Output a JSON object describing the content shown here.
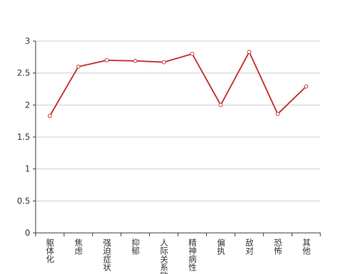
{
  "chart_data": {
    "type": "line",
    "categories": [
      "躯体化",
      "焦虑",
      "强迫症状",
      "抑郁",
      "人际关系敏感",
      "精神病性",
      "偏执",
      "敌对",
      "恐怖",
      "其他"
    ],
    "values": [
      1.83,
      2.6,
      2.7,
      2.69,
      2.67,
      2.8,
      2.0,
      2.83,
      1.86,
      2.29
    ],
    "color": "#c23531",
    "ylim": [
      0,
      3
    ],
    "yticks": [
      0,
      0.5,
      1,
      1.5,
      2,
      2.5,
      3
    ],
    "grid": true
  }
}
